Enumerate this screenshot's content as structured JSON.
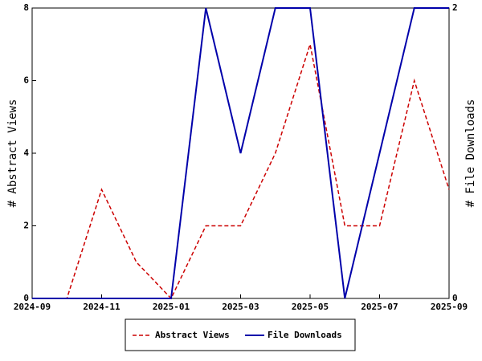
{
  "chart_data": {
    "type": "line",
    "categories": [
      "2024-09",
      null,
      "2024-11",
      null,
      "2025-01",
      null,
      "2025-03",
      null,
      "2025-05",
      null,
      "2025-07",
      null,
      "2025-09"
    ],
    "ylabel": "# Abstract Views",
    "y2label": "# File Downloads",
    "ylim": [
      0,
      8
    ],
    "yticks": [
      0,
      2,
      4,
      6,
      8
    ],
    "y2lim": [
      0,
      2
    ],
    "y2ticks": [
      0,
      2
    ],
    "legend": "bottom",
    "series": [
      {
        "name": "Abstract Views",
        "color": "#cc0000",
        "dash": true,
        "values": [
          0,
          0,
          3,
          1,
          0,
          2,
          2,
          4,
          7,
          2,
          2,
          6,
          3
        ]
      },
      {
        "name": "File Downloads",
        "color": "#0000aa",
        "axis": "y2",
        "values": [
          0,
          0,
          0,
          0,
          0,
          2,
          1,
          2,
          2,
          0,
          1,
          2,
          2
        ]
      }
    ]
  }
}
